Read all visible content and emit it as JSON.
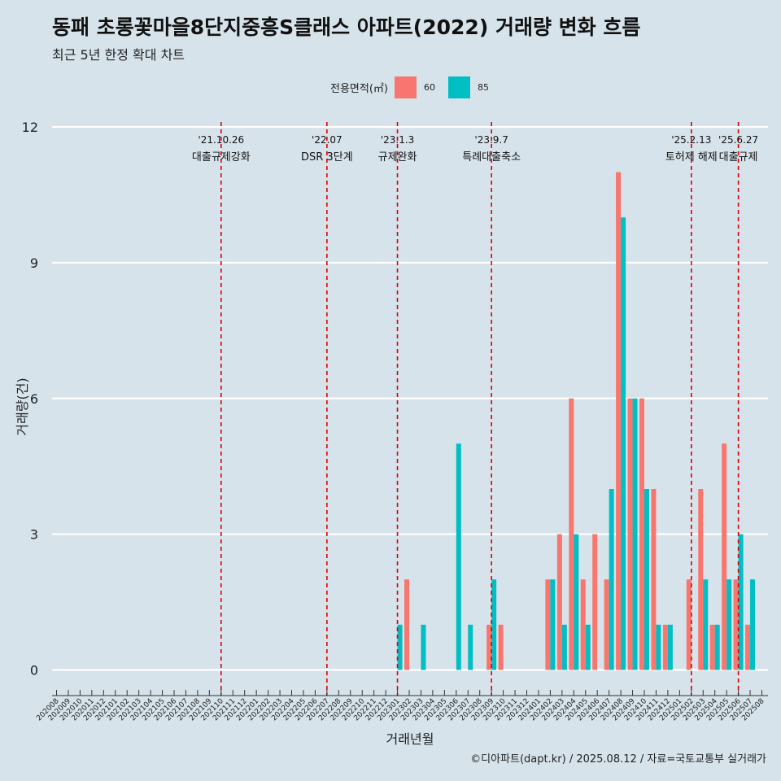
{
  "title": "동패 초롱꽃마을8단지중흥S클래스 아파트(2022) 거래량 변화 흐름",
  "subtitle": "최근 5년 한정 확대 차트",
  "caption": "©디아파트(dapt.kr) / 2025.08.12 / 자료=국토교통부 실거래가",
  "legend": {
    "title": "전용면적(㎡)",
    "items": [
      {
        "label": "60",
        "color": "#f8766d"
      },
      {
        "label": "85",
        "color": "#00bfc4"
      }
    ]
  },
  "chart_data": {
    "type": "bar",
    "title": "동패 초롱꽃마을8단지중흥S클래스 아파트(2022) 거래량 변화 흐름",
    "xlabel": "거래년월",
    "ylabel": "거래량(건)",
    "ylim": [
      0,
      12
    ],
    "yticks": [
      0,
      3,
      6,
      9,
      12
    ],
    "grid": true,
    "legend_position": "top",
    "categories": [
      "202008",
      "202009",
      "202010",
      "202011",
      "202012",
      "202101",
      "202102",
      "202103",
      "202104",
      "202105",
      "202106",
      "202107",
      "202108",
      "202109",
      "202110",
      "202111",
      "202112",
      "202201",
      "202202",
      "202203",
      "202204",
      "202205",
      "202206",
      "202207",
      "202208",
      "202209",
      "202210",
      "202211",
      "202212",
      "202301",
      "202302",
      "202303",
      "202304",
      "202305",
      "202306",
      "202307",
      "202308",
      "202309",
      "202310",
      "202311",
      "202312",
      "202401",
      "202402",
      "202403",
      "202404",
      "202405",
      "202406",
      "202407",
      "202408",
      "202409",
      "202410",
      "202411",
      "202412",
      "202501",
      "202502",
      "202503",
      "202504",
      "202505",
      "202506",
      "202507",
      "202508"
    ],
    "series": [
      {
        "name": "60",
        "color": "#f8766d",
        "values": [
          0,
          0,
          0,
          0,
          0,
          0,
          0,
          0,
          0,
          0,
          0,
          0,
          0,
          0,
          0,
          0,
          0,
          0,
          0,
          0,
          0,
          0,
          0,
          0,
          0,
          0,
          0,
          0,
          0,
          0,
          2,
          0,
          0,
          0,
          0,
          0,
          0,
          1,
          1,
          0,
          0,
          0,
          2,
          3,
          6,
          2,
          3,
          2,
          11,
          6,
          6,
          4,
          1,
          0,
          2,
          4,
          1,
          5,
          2,
          1,
          0
        ]
      },
      {
        "name": "85",
        "color": "#00bfc4",
        "values": [
          0,
          0,
          0,
          0,
          0,
          0,
          0,
          0,
          0,
          0,
          0,
          0,
          0,
          0,
          0,
          0,
          0,
          0,
          0,
          0,
          0,
          0,
          0,
          0,
          0,
          0,
          0,
          0,
          0,
          1,
          0,
          1,
          0,
          0,
          5,
          1,
          0,
          2,
          0,
          0,
          0,
          0,
          2,
          1,
          3,
          1,
          0,
          4,
          10,
          6,
          4,
          1,
          1,
          0,
          0,
          2,
          1,
          2,
          3,
          2,
          0
        ]
      }
    ],
    "events": [
      {
        "month": "202110",
        "date": "'21.10.26",
        "label": "대출규제강화"
      },
      {
        "month": "202207",
        "date": "'22.07",
        "label": "DSR 3단계"
      },
      {
        "month": "202301",
        "date": "'23.1.3",
        "label": "규제완화"
      },
      {
        "month": "202309",
        "date": "'23.9.7",
        "label": "특례대출축소"
      },
      {
        "month": "202502",
        "date": "'25.2.13",
        "label": "토허제 해제"
      },
      {
        "month": "202506",
        "date": "'25.6.27",
        "label": "대출규제"
      }
    ]
  }
}
